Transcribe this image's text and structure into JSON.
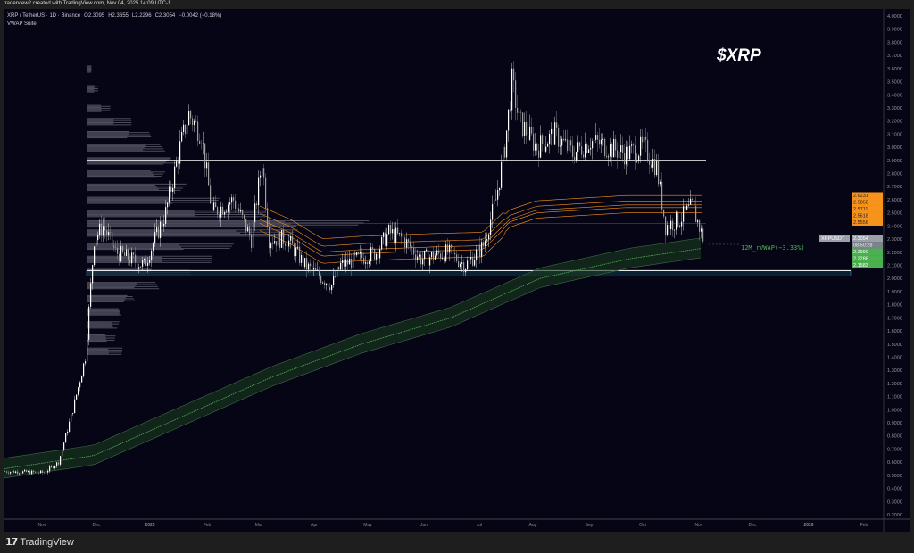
{
  "header": {
    "credit": "traderview2 created with TradingView.com, Nov 04, 2025 14:09 UTC-1"
  },
  "legend": {
    "symbol": "XRP / TetherUS · 1D · Binance",
    "open": "O2.3095",
    "high": "H2.3655",
    "low": "L2.2296",
    "close": "C2.3054",
    "change": "−0.0042 (−0.18%)",
    "indicator": "VWAP Suite"
  },
  "annotation": {
    "ticker": "$XRP",
    "vwap_label": "12M_rVWAP(−3.33%)"
  },
  "colors": {
    "bg": "#050516",
    "up": "#ffffff",
    "down": "#9e9e9e",
    "orange": "#f7931a",
    "green": "#4caf50",
    "level": "#ffffff",
    "poc": "#b22222",
    "zone": "#4fc3f7"
  },
  "price_axis": {
    "ticks": [
      "4.0000",
      "3.9000",
      "3.8000",
      "3.7000",
      "3.6000",
      "3.5000",
      "3.4000",
      "3.3000",
      "3.2000",
      "3.1000",
      "3.0000",
      "2.9000",
      "2.8000",
      "2.7000",
      "2.6000",
      "2.5000",
      "2.4000",
      "2.3000",
      "2.2000",
      "2.1000",
      "2.0000",
      "1.9000",
      "1.8000",
      "1.7000",
      "1.6000",
      "1.5000",
      "1.4000",
      "1.3000",
      "1.2000",
      "1.1000",
      "1.0000",
      "0.9000",
      "0.8000",
      "0.7000",
      "0.6000",
      "0.5000",
      "0.4000",
      "0.3000",
      "0.2000"
    ],
    "orange_labels": [
      "2.6231",
      "2.5858",
      "2.5711",
      "2.5618",
      "2.5556"
    ],
    "current": {
      "symbol": "XRPUSDT",
      "price": "2.3054",
      "countdown": "08:50:28"
    },
    "green_labels": [
      "2.2990",
      "2.2286",
      "2.1583"
    ]
  },
  "time_axis": [
    "Nov",
    "Dec",
    "2025",
    "Feb",
    "Mar",
    "Apr",
    "May",
    "Jun",
    "Jul",
    "Aug",
    "Sep",
    "Oct",
    "Nov",
    "Dec",
    "2026",
    "Feb"
  ],
  "chart_data": {
    "type": "candlestick",
    "range": [
      0.2,
      4.0
    ],
    "price_path": [
      [
        0,
        0.53
      ],
      [
        22,
        0.52
      ],
      [
        30,
        0.6
      ],
      [
        38,
        1.0
      ],
      [
        45,
        1.4
      ],
      [
        50,
        2.3
      ],
      [
        55,
        2.4
      ],
      [
        62,
        2.2
      ],
      [
        78,
        2.1
      ],
      [
        90,
        2.5
      ],
      [
        98,
        3.0
      ],
      [
        103,
        3.25
      ],
      [
        110,
        3.1
      ],
      [
        116,
        2.5
      ],
      [
        128,
        2.6
      ],
      [
        138,
        2.3
      ],
      [
        144,
        2.9
      ],
      [
        148,
        2.3
      ],
      [
        158,
        2.3
      ],
      [
        168,
        2.1
      ],
      [
        178,
        2.0
      ],
      [
        183,
        1.95
      ],
      [
        188,
        2.1
      ],
      [
        198,
        2.15
      ],
      [
        208,
        2.2
      ],
      [
        215,
        2.35
      ],
      [
        223,
        2.3
      ],
      [
        233,
        2.15
      ],
      [
        248,
        2.2
      ],
      [
        258,
        2.1
      ],
      [
        268,
        2.25
      ],
      [
        275,
        2.6
      ],
      [
        280,
        3.0
      ],
      [
        284,
        3.5
      ],
      [
        288,
        3.2
      ],
      [
        298,
        3.0
      ],
      [
        308,
        3.1
      ],
      [
        318,
        2.95
      ],
      [
        328,
        3.05
      ],
      [
        338,
        3.0
      ],
      [
        348,
        2.95
      ],
      [
        358,
        3.0
      ],
      [
        365,
        2.85
      ],
      [
        370,
        2.4
      ],
      [
        378,
        2.45
      ],
      [
        385,
        2.55
      ],
      [
        391,
        2.31
      ]
    ],
    "levels": [
      2.9,
      2.06
    ],
    "poc": 2.42,
    "zone": [
      2.02,
      2.06
    ],
    "rvwap": [
      [
        0,
        0.55
      ],
      [
        50,
        0.65
      ],
      [
        100,
        0.95
      ],
      [
        150,
        1.25
      ],
      [
        200,
        1.5
      ],
      [
        250,
        1.7
      ],
      [
        275,
        1.85
      ],
      [
        300,
        2.0
      ],
      [
        350,
        2.15
      ],
      [
        391,
        2.23
      ]
    ],
    "vwap": [
      [
        143,
        2.45
      ],
      [
        160,
        2.35
      ],
      [
        178,
        2.2
      ],
      [
        200,
        2.22
      ],
      [
        240,
        2.24
      ],
      [
        268,
        2.25
      ],
      [
        283,
        2.45
      ],
      [
        298,
        2.52
      ],
      [
        348,
        2.56
      ],
      [
        391,
        2.56
      ]
    ],
    "profile": [
      [
        1.45,
        0.12
      ],
      [
        1.55,
        0.1
      ],
      [
        1.65,
        0.12
      ],
      [
        1.75,
        0.14
      ],
      [
        1.85,
        0.18
      ],
      [
        1.95,
        0.25
      ],
      [
        2.05,
        0.35
      ],
      [
        2.15,
        0.42
      ],
      [
        2.25,
        0.5
      ],
      [
        2.35,
        0.75
      ],
      [
        2.42,
        1.0
      ],
      [
        2.5,
        0.6
      ],
      [
        2.6,
        0.45
      ],
      [
        2.7,
        0.35
      ],
      [
        2.8,
        0.3
      ],
      [
        2.9,
        0.35
      ],
      [
        3.0,
        0.28
      ],
      [
        3.1,
        0.22
      ],
      [
        3.2,
        0.15
      ],
      [
        3.3,
        0.08
      ],
      [
        3.45,
        0.04
      ],
      [
        3.6,
        0.02
      ]
    ]
  }
}
